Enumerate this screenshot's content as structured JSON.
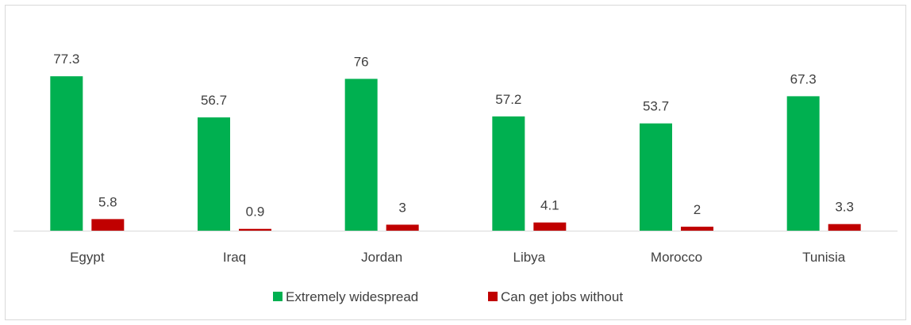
{
  "chart_data": {
    "type": "bar",
    "categories": [
      "Egypt",
      "Iraq",
      "Jordan",
      "Libya",
      "Morocco",
      "Tunisia"
    ],
    "series": [
      {
        "name": "Extremely widespread",
        "color": "#00b050",
        "values": [
          77.3,
          56.7,
          76,
          57.2,
          53.7,
          67.3
        ],
        "labels": [
          "77.3",
          "56.7",
          "76",
          "57.2",
          "53.7",
          "67.3"
        ]
      },
      {
        "name": "Can get jobs without",
        "color": "#c00000",
        "values": [
          5.8,
          0.9,
          3,
          4.1,
          2,
          3.3
        ],
        "labels": [
          "5.8",
          "0.9",
          "3",
          "4.1",
          "2",
          "3.3"
        ]
      }
    ],
    "ylim": [
      0,
      80
    ],
    "grid": false,
    "legend": "bottom"
  }
}
